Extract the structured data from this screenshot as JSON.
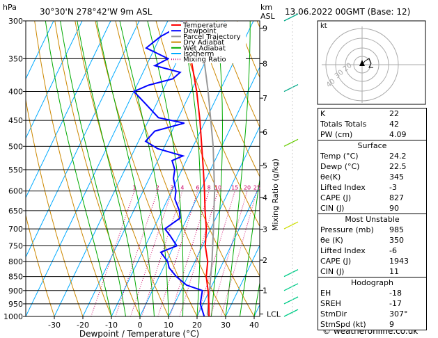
{
  "header": {
    "hpa_label": "hPa",
    "location": "30°30'N 278°42'W 9m ASL",
    "km_label": "km",
    "asl_label": "ASL",
    "datetime": "13.06.2022 00GMT (Base: 12)",
    "credit": "© weatheronline.co.uk"
  },
  "legend": [
    {
      "label": "Temperature",
      "color": "#ff0000",
      "dash": "solid"
    },
    {
      "label": "Dewpoint",
      "color": "#0000ff",
      "dash": "solid"
    },
    {
      "label": "Parcel Trajectory",
      "color": "#999999",
      "dash": "solid"
    },
    {
      "label": "Dry Adiabat",
      "color": "#cc8800",
      "dash": "solid"
    },
    {
      "label": "Wet Adiabat",
      "color": "#00aa00",
      "dash": "solid"
    },
    {
      "label": "Isotherm",
      "color": "#00aaff",
      "dash": "solid"
    },
    {
      "label": "Mixing Ratio",
      "color": "#cc0066",
      "dash": "dotted"
    }
  ],
  "chart_data": {
    "type": "skew-t",
    "xlabel": "Dewpoint / Temperature (°C)",
    "ylabel_right": "Mixing Ratio (g/kg)",
    "pressure_levels": [
      300,
      350,
      400,
      450,
      500,
      550,
      600,
      650,
      700,
      750,
      800,
      850,
      900,
      950,
      1000
    ],
    "x_ticks": [
      -30,
      -20,
      -10,
      0,
      10,
      20,
      30,
      40
    ],
    "xlim": [
      -40,
      40
    ],
    "km_ticks": [
      {
        "label": "9",
        "p": 309
      },
      {
        "label": "8",
        "p": 357
      },
      {
        "label": "7",
        "p": 411
      },
      {
        "label": "6",
        "p": 472
      },
      {
        "label": "5",
        "p": 541
      },
      {
        "label": "4",
        "p": 616
      },
      {
        "label": "3",
        "p": 701
      },
      {
        "label": "2",
        "p": 795
      },
      {
        "label": "1",
        "p": 899
      },
      {
        "label": "LCL",
        "p": 990
      }
    ],
    "mixing_ratio_labels": [
      "1",
      "2",
      "3",
      "4",
      "6",
      "8",
      "10",
      "15",
      "20",
      "25"
    ],
    "mixing_ratio_values": [
      1,
      2,
      3,
      4,
      6,
      8,
      10,
      15,
      20,
      25
    ],
    "temperature": [
      {
        "p": 1000,
        "t": 24.2
      },
      {
        "p": 950,
        "t": 22.0
      },
      {
        "p": 900,
        "t": 19.5
      },
      {
        "p": 850,
        "t": 16.5
      },
      {
        "p": 800,
        "t": 14.5
      },
      {
        "p": 750,
        "t": 11.0
      },
      {
        "p": 700,
        "t": 8.5
      },
      {
        "p": 650,
        "t": 5.0
      },
      {
        "p": 600,
        "t": 1.5
      },
      {
        "p": 550,
        "t": -2.5
      },
      {
        "p": 500,
        "t": -7.0
      },
      {
        "p": 450,
        "t": -12.0
      },
      {
        "p": 400,
        "t": -18.0
      },
      {
        "p": 350,
        "t": -25.5
      },
      {
        "p": 300,
        "t": -33.5
      }
    ],
    "dewpoint": [
      {
        "p": 1000,
        "t": 22.5
      },
      {
        "p": 950,
        "t": 19.0
      },
      {
        "p": 900,
        "t": 17.5
      },
      {
        "p": 880,
        "t": 11.0
      },
      {
        "p": 850,
        "t": 6.0
      },
      {
        "p": 820,
        "t": 2.0
      },
      {
        "p": 800,
        "t": 0.5
      },
      {
        "p": 770,
        "t": -3.5
      },
      {
        "p": 750,
        "t": 1.0
      },
      {
        "p": 720,
        "t": -3.0
      },
      {
        "p": 700,
        "t": -6.0
      },
      {
        "p": 670,
        "t": -2.5
      },
      {
        "p": 650,
        "t": -4.0
      },
      {
        "p": 620,
        "t": -7.5
      },
      {
        "p": 600,
        "t": -8.5
      },
      {
        "p": 570,
        "t": -11.5
      },
      {
        "p": 550,
        "t": -12.5
      },
      {
        "p": 530,
        "t": -15.0
      },
      {
        "p": 520,
        "t": -12.0
      },
      {
        "p": 505,
        "t": -22.0
      },
      {
        "p": 490,
        "t": -27.5
      },
      {
        "p": 470,
        "t": -26.0
      },
      {
        "p": 455,
        "t": -17.0
      },
      {
        "p": 445,
        "t": -27.0
      },
      {
        "p": 420,
        "t": -34.0
      },
      {
        "p": 400,
        "t": -40.0
      },
      {
        "p": 390,
        "t": -36.0
      },
      {
        "p": 380,
        "t": -28.5
      },
      {
        "p": 370,
        "t": -27.0
      },
      {
        "p": 360,
        "t": -37.0
      },
      {
        "p": 350,
        "t": -33.5
      },
      {
        "p": 335,
        "t": -43.0
      },
      {
        "p": 320,
        "t": -40.0
      },
      {
        "p": 305,
        "t": -34.5
      },
      {
        "p": 300,
        "t": -35.0
      }
    ],
    "parcel": [
      {
        "p": 1000,
        "t": 24.2
      },
      {
        "p": 990,
        "t": 23.2
      },
      {
        "p": 900,
        "t": 20.0
      },
      {
        "p": 800,
        "t": 16.0
      },
      {
        "p": 700,
        "t": 11.0
      },
      {
        "p": 600,
        "t": 5.0
      },
      {
        "p": 500,
        "t": -3.0
      },
      {
        "p": 400,
        "t": -14.0
      },
      {
        "p": 350,
        "t": -21.0
      }
    ]
  },
  "hodograph": {
    "label": "kt",
    "ring_labels": [
      "20",
      "30",
      "40"
    ]
  },
  "indices": [
    {
      "label": "K",
      "value": "22"
    },
    {
      "label": "Totals Totals",
      "value": "42"
    },
    {
      "label": "PW (cm)",
      "value": "4.09"
    }
  ],
  "surface": {
    "title": "Surface",
    "rows": [
      {
        "label": "Temp (°C)",
        "value": "24.2"
      },
      {
        "label": "Dewp (°C)",
        "value": "22.5"
      },
      {
        "label": "θe(K)",
        "value": "345"
      },
      {
        "label": "Lifted Index",
        "value": "-3"
      },
      {
        "label": "CAPE (J)",
        "value": "827"
      },
      {
        "label": "CIN (J)",
        "value": "90"
      }
    ]
  },
  "most_unstable": {
    "title": "Most Unstable",
    "rows": [
      {
        "label": "Pressure (mb)",
        "value": "985"
      },
      {
        "label": "θe (K)",
        "value": "350"
      },
      {
        "label": "Lifted Index",
        "value": "-6"
      },
      {
        "label": "CAPE (J)",
        "value": "1943"
      },
      {
        "label": "CIN (J)",
        "value": "11"
      }
    ]
  },
  "hodo_table": {
    "title": "Hodograph",
    "rows": [
      {
        "label": "EH",
        "value": "-18"
      },
      {
        "label": "SREH",
        "value": "-17"
      },
      {
        "label": "StmDir",
        "value": "307°"
      },
      {
        "label": "StmSpd (kt)",
        "value": "9"
      }
    ]
  }
}
